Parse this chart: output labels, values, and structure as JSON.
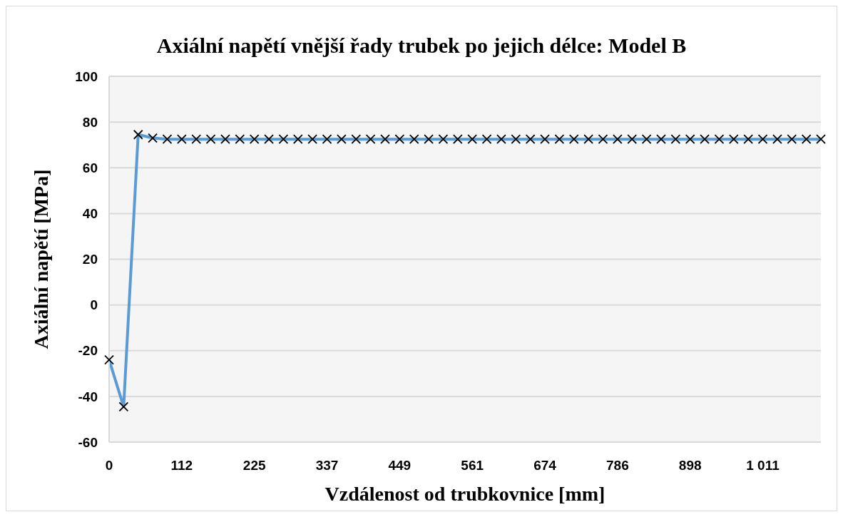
{
  "chart_data": {
    "type": "line",
    "title": "Axiální napětí vnější řady trubek po jejich délce: Model B",
    "xlabel": "Vzdálenost od trubkovnice [mm]",
    "ylabel": "Axiální napětí [MPa]",
    "categories": [
      "0",
      null,
      null,
      null,
      null,
      "112",
      null,
      null,
      null,
      null,
      "225",
      null,
      null,
      null,
      null,
      "337",
      null,
      null,
      null,
      null,
      "449",
      null,
      null,
      null,
      null,
      "561",
      null,
      null,
      null,
      null,
      "674",
      null,
      null,
      null,
      null,
      "786",
      null,
      null,
      null,
      null,
      "898",
      null,
      null,
      null,
      null,
      "1 011",
      null,
      null,
      null,
      null
    ],
    "series": [
      {
        "color": "#5b9bd5",
        "values": [
          -24,
          -44.5,
          74.5,
          73,
          72.5,
          72.5,
          72.5,
          72.5,
          72.5,
          72.5,
          72.5,
          72.5,
          72.5,
          72.5,
          72.5,
          72.5,
          72.5,
          72.5,
          72.5,
          72.5,
          72.5,
          72.5,
          72.5,
          72.5,
          72.5,
          72.5,
          72.5,
          72.5,
          72.5,
          72.5,
          72.5,
          72.5,
          72.5,
          72.5,
          72.5,
          72.5,
          72.5,
          72.5,
          72.5,
          72.5,
          72.5,
          72.5,
          72.5,
          72.5,
          72.5,
          72.5,
          72.5,
          72.5,
          72.5,
          72.5
        ]
      }
    ],
    "ylim": [
      -60,
      100
    ],
    "yticks": [
      -60,
      -40,
      -20,
      0,
      20,
      40,
      60,
      80,
      100
    ],
    "grid": "y",
    "marker": "cross",
    "line_style": "solid"
  }
}
